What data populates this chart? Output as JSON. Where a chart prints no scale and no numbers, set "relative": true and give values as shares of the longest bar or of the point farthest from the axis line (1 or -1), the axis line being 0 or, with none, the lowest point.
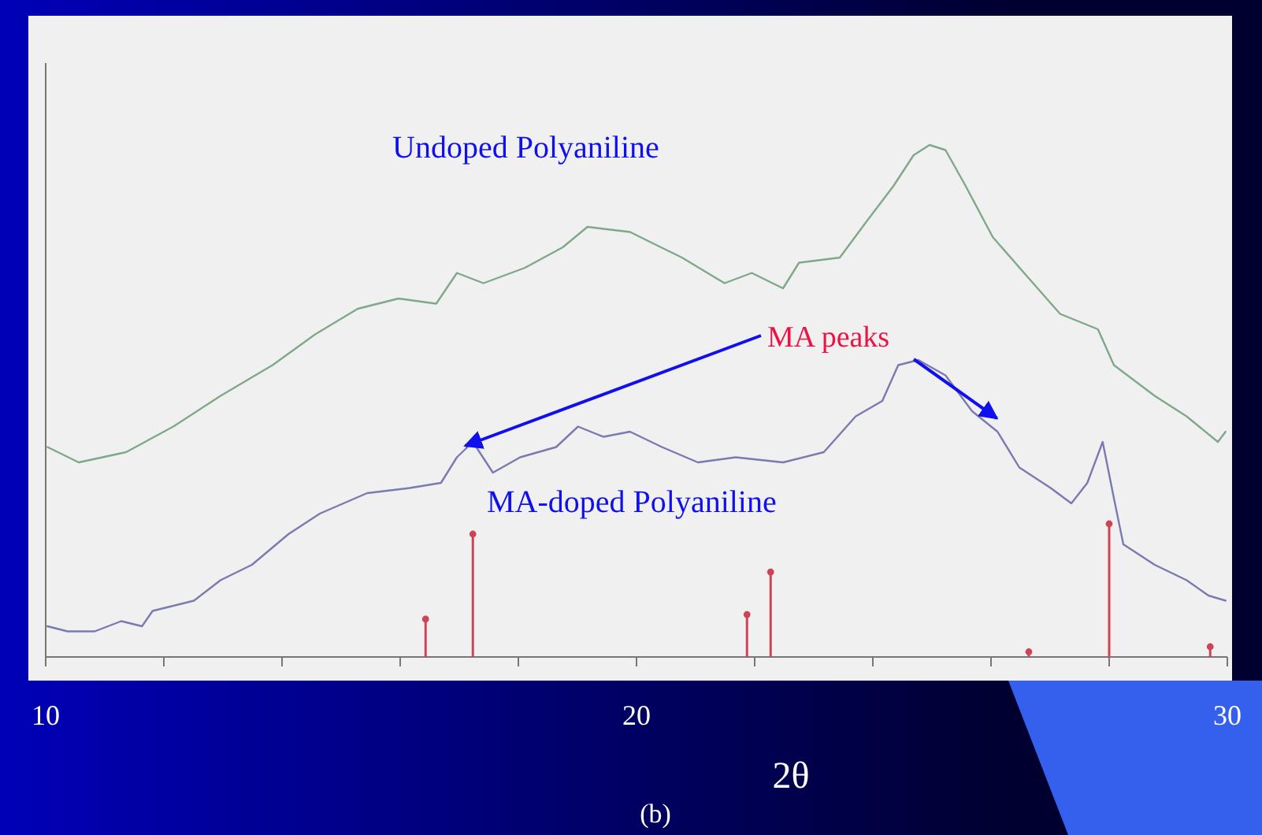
{
  "chart_data": {
    "type": "line",
    "relative": true,
    "xlabel": "2θ",
    "annotations": [
      "MA peaks",
      "(b)"
    ],
    "xlim": [
      10,
      30
    ],
    "xticks": [
      10,
      {
        "value": 12,
        "label": null
      },
      {
        "value": 14,
        "label": null
      },
      {
        "value": 16,
        "label": null
      },
      {
        "value": 18,
        "label": null
      },
      20,
      {
        "value": 22,
        "label": null
      },
      {
        "value": 24,
        "label": null
      },
      {
        "value": 26,
        "label": null
      },
      {
        "value": 28,
        "label": null
      },
      30
    ],
    "tick_labels": "x",
    "grid": false,
    "marker": "none",
    "line_style": "solid",
    "series": [
      {
        "name": "Undoped Polyaniline",
        "color": "#7fa88a",
        "x": [
          10.03,
          10.56,
          11.36,
          12.16,
          12.96,
          13.84,
          14.56,
          15.28,
          15.97,
          16.61,
          16.96,
          17.41,
          18.11,
          18.75,
          19.17,
          19.89,
          20.24,
          20.77,
          21.49,
          21.95,
          22.48,
          22.75,
          23.44,
          23.89,
          24.35,
          24.69,
          24.96,
          25.23,
          25.57,
          26.03,
          26.56,
          27.17,
          27.81,
          28.08,
          28.77,
          29.31,
          29.84,
          29.97
        ],
        "values": [
          0.41,
          0.38,
          0.4,
          0.45,
          0.51,
          0.57,
          0.63,
          0.68,
          0.7,
          0.69,
          0.75,
          0.73,
          0.76,
          0.8,
          0.84,
          0.83,
          0.81,
          0.78,
          0.73,
          0.75,
          0.72,
          0.77,
          0.78,
          0.85,
          0.92,
          0.98,
          1,
          0.99,
          0.92,
          0.82,
          0.75,
          0.67,
          0.64,
          0.57,
          0.51,
          0.47,
          0.42,
          0.44
        ]
      },
      {
        "name": "MA-doped Polyaniline",
        "color": "#7a7ab0",
        "x": [
          10.03,
          10.37,
          10.83,
          11.28,
          11.63,
          11.81,
          12.51,
          12.96,
          13.49,
          14.11,
          14.64,
          15.44,
          16.16,
          16.69,
          16.96,
          17.23,
          17.57,
          18.03,
          18.64,
          19.01,
          19.44,
          19.89,
          20.43,
          21.04,
          21.68,
          22.48,
          23.17,
          23.71,
          24.16,
          24.43,
          24.77,
          25.23,
          25.68,
          26.11,
          26.48,
          27.01,
          27.36,
          27.63,
          27.89,
          28.08,
          28.24,
          28.77,
          29.31,
          29.68,
          29.97
        ],
        "values": [
          0.06,
          0.05,
          0.05,
          0.07,
          0.06,
          0.09,
          0.11,
          0.15,
          0.18,
          0.24,
          0.28,
          0.32,
          0.33,
          0.34,
          0.39,
          0.42,
          0.36,
          0.39,
          0.41,
          0.45,
          0.43,
          0.44,
          0.41,
          0.38,
          0.39,
          0.38,
          0.4,
          0.47,
          0.5,
          0.57,
          0.58,
          0.55,
          0.48,
          0.44,
          0.37,
          0.33,
          0.3,
          0.34,
          0.42,
          0.31,
          0.22,
          0.18,
          0.15,
          0.12,
          0.11
        ]
      },
      {
        "type": "lollipop",
        "color": "#cc4455",
        "marker": "circle",
        "x": [
          16.43,
          17.23,
          21.87,
          22.27,
          26.64,
          28.0,
          29.71
        ],
        "values": [
          0.074,
          0.24,
          0.083,
          0.166,
          0.01,
          0.26,
          0.02
        ]
      }
    ]
  }
}
